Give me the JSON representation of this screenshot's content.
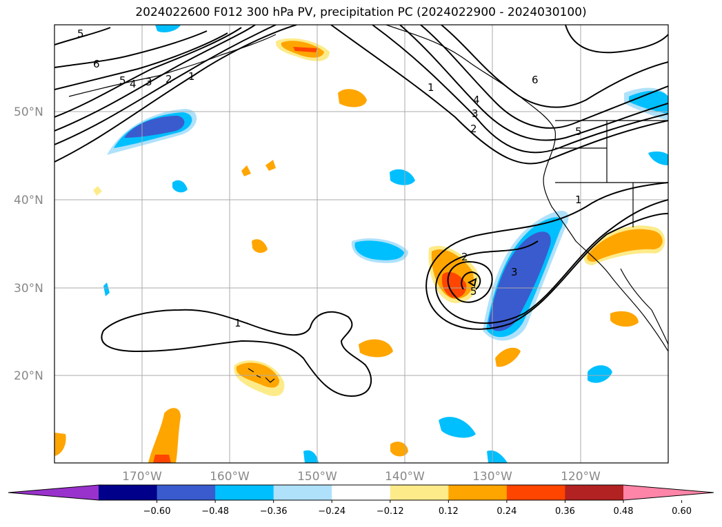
{
  "title": "2024022600 F012 300 hPa PV, precipitation PC (2024022900 - 2024030100)",
  "lat_labels": [
    "20°N",
    "30°N",
    "40°N",
    "50°N"
  ],
  "lon_labels": [
    "170°W",
    "160°W",
    "150°W",
    "140°W",
    "130°W",
    "120°W"
  ],
  "colorbar": {
    "ticks": [
      "−0.60",
      "−0.48",
      "−0.36",
      "−0.24",
      "−0.12",
      "0.12",
      "0.24",
      "0.36",
      "0.48",
      "0.60"
    ],
    "colors": [
      "#9932cc",
      "#00008b",
      "#3a5bcd",
      "#00bfff",
      "#afe1fa",
      "#ffffff",
      "#fdeb8a",
      "#ffa500",
      "#ff4500",
      "#b22222",
      "#ff85a8"
    ]
  },
  "contour_labels": [
    "5",
    "6",
    "5",
    "4",
    "3",
    "2",
    "1",
    "1",
    "2",
    "3",
    "4",
    "6",
    "5",
    "1",
    "2",
    "3",
    "5",
    "1"
  ]
}
